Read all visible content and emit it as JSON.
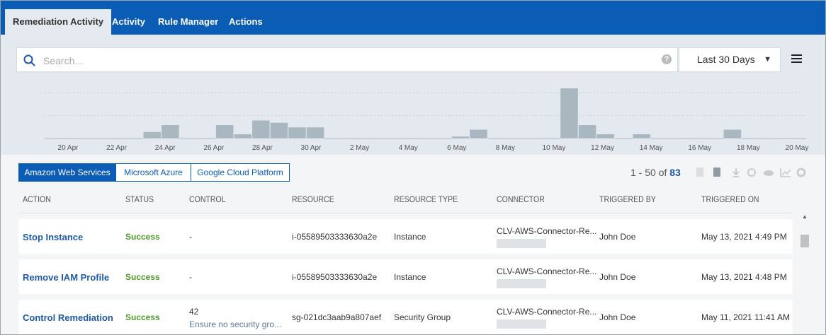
{
  "nav": {
    "tabs": [
      "Remediation Activity",
      "Activity",
      "Rule Manager",
      "Actions"
    ],
    "active": 0
  },
  "search": {
    "placeholder": "Search...",
    "range": "Last 30 Days"
  },
  "chart_data": {
    "type": "histogram",
    "color": "#a9b7c1",
    "bins": [
      0,
      1,
      2,
      3,
      4,
      5,
      6,
      7,
      8,
      9,
      10,
      11,
      12,
      13,
      14,
      15,
      16,
      17,
      18,
      19,
      20,
      21,
      22,
      23,
      24,
      25,
      26,
      27,
      28,
      29,
      30,
      31,
      32,
      33,
      34,
      35,
      36,
      37,
      38,
      39,
      40,
      41
    ],
    "values": [
      0,
      0,
      0,
      0,
      0,
      3,
      6,
      0,
      0,
      6,
      2,
      8,
      7,
      5,
      5,
      0,
      0,
      0,
      0,
      0,
      0,
      0,
      1,
      4,
      0,
      0,
      0,
      0,
      22,
      6,
      2,
      0,
      2,
      0,
      0,
      0,
      0,
      4,
      0,
      0,
      0
    ],
    "xlim": [
      -0.43,
      41.57
    ],
    "ylim": [
      0,
      24
    ],
    "yticks": [
      0,
      10,
      20
    ],
    "grid": true,
    "xticks": [
      {
        "value": 0.86,
        "label": "20 Apr"
      },
      {
        "value": 3.54,
        "label": "22 Apr"
      },
      {
        "value": 6.22,
        "label": "24 Apr"
      },
      {
        "value": 8.9,
        "label": "26 Apr"
      },
      {
        "value": 11.58,
        "label": "28 Apr"
      },
      {
        "value": 14.26,
        "label": "30 Apr"
      },
      {
        "value": 16.94,
        "label": "2 May"
      },
      {
        "value": 19.62,
        "label": "4 May"
      },
      {
        "value": 22.3,
        "label": "6 May"
      },
      {
        "value": 24.98,
        "label": "8 May"
      },
      {
        "value": 27.66,
        "label": "10 May"
      },
      {
        "value": 30.34,
        "label": "12 May"
      },
      {
        "value": 33.02,
        "label": "14 May"
      },
      {
        "value": 35.7,
        "label": "16 May"
      },
      {
        "value": 38.38,
        "label": "18 May"
      },
      {
        "value": 41.06,
        "label": "20 May"
      }
    ]
  },
  "providers": {
    "tabs": [
      "Amazon Web Services",
      "Microsoft Azure",
      "Google Cloud Platform"
    ],
    "active": 0
  },
  "pagination": {
    "range": "1 - 50 of",
    "total": "83"
  },
  "table": {
    "columns": [
      "ACTION",
      "STATUS",
      "CONTROL",
      "RESOURCE",
      "RESOURCE TYPE",
      "CONNECTOR",
      "TRIGGERED BY",
      "TRIGGERED ON"
    ],
    "rows": [
      [
        "Stop Instance",
        "Success",
        "-",
        "i-05589503333630a2e",
        "Instance",
        "CLV-AWS-Connector-Re...",
        "John Doe",
        "May 13, 2021 4:49 PM"
      ],
      [
        "Remove IAM Profile",
        "Success",
        "-",
        "i-05589503333630a2e",
        "Instance",
        "CLV-AWS-Connector-Re...",
        "John Doe",
        "May 13, 2021 4:48 PM"
      ],
      [
        "Control Remediation",
        "Success",
        "42",
        "sg-021dc3aab9a807aef",
        "Security Group",
        "CLV-AWS-Connector-Re...",
        "John Doe",
        "May 11, 2021 11:41 AM"
      ]
    ],
    "control_notes": [
      null,
      null,
      "Ensure no security gro..."
    ]
  }
}
